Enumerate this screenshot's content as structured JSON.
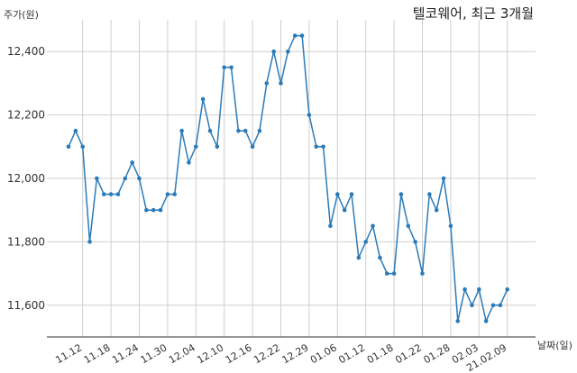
{
  "chart_data": {
    "type": "line",
    "title": "텔코웨어, 최근 3개월",
    "ylabel": "주가(원)",
    "xlabel": "날짜(일)",
    "ylim": [
      11500,
      12500
    ],
    "yticks": [
      11600,
      11800,
      12000,
      12200,
      12400
    ],
    "ytick_labels": [
      "11,600",
      "11,800",
      "12,000",
      "12,200",
      "12,400"
    ],
    "xtick_labels": [
      "11.12",
      "11.18",
      "11.24",
      "11.30",
      "12.04",
      "12.10",
      "12.16",
      "12.22",
      "12.29",
      "01.06",
      "01.12",
      "01.18",
      "01.22",
      "01.28",
      "02.03",
      "21.02.09"
    ],
    "xtick_index": [
      2,
      6,
      10,
      14,
      18,
      22,
      26,
      30,
      34,
      38,
      42,
      46,
      50,
      54,
      58,
      62
    ],
    "grid": true,
    "series": [
      {
        "values": [
          12100,
          12150,
          12100,
          11800,
          12000,
          11950,
          11950,
          11950,
          12000,
          12050,
          12000,
          11900,
          11900,
          11900,
          11950,
          11950,
          12150,
          12050,
          12100,
          12250,
          12150,
          12100,
          12350,
          12350,
          12150,
          12150,
          12100,
          12150,
          12300,
          12400,
          12300,
          12400,
          12450,
          12450,
          12200,
          12100,
          12100,
          11850,
          11950,
          11900,
          11950,
          11750,
          11800,
          11850,
          11750,
          11700,
          11700,
          11950,
          11850,
          11800,
          11700,
          11950,
          11900,
          12000,
          11850,
          11550,
          11650,
          11600,
          11650,
          11550,
          11600,
          11600,
          11650
        ],
        "color": "#2b7bb9"
      }
    ]
  }
}
